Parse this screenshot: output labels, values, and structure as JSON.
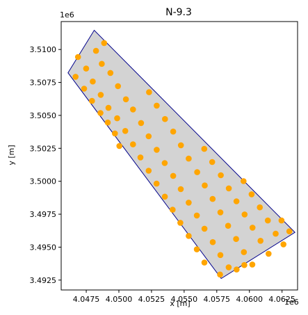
{
  "chart_data": {
    "type": "scatter",
    "title": "N-9.3",
    "xlabel": "x [m]",
    "ylabel": "y [m]",
    "x_offset_label": "1e6",
    "y_offset_label": "1e6",
    "xlim": [
      4.04558,
      4.06369
    ],
    "ylim": [
      3.49175,
      3.51212
    ],
    "x_tick_values": [
      4.0475,
      4.05,
      4.0525,
      4.055,
      4.0575,
      4.06,
      4.0625
    ],
    "x_tick_labels": [
      "4.0475",
      "4.0500",
      "4.0525",
      "4.0550",
      "4.0575",
      "4.0600",
      "4.0625"
    ],
    "y_tick_values": [
      3.4925,
      3.495,
      3.4975,
      3.5,
      3.5025,
      3.505,
      3.5075,
      3.51
    ],
    "y_tick_labels": [
      "3.4925",
      "3.4950",
      "3.4975",
      "3.5000",
      "3.5025",
      "3.5050",
      "3.5075",
      "3.5100"
    ],
    "grid": false,
    "legend": "none",
    "colors": {
      "polygon_fill": "#d3d3d3",
      "polygon_edge": "#00008b",
      "points": "#ffa500"
    },
    "polygon": [
      [
        4.0461,
        3.50823
      ],
      [
        4.04811,
        3.51146
      ],
      [
        4.06349,
        3.49612
      ],
      [
        4.05784,
        3.49262
      ],
      [
        4.0461,
        3.50823
      ]
    ],
    "points": [
      [
        4.04887,
        3.51049
      ],
      [
        4.04825,
        3.5099
      ],
      [
        4.04687,
        3.50943
      ],
      [
        4.04869,
        3.50891
      ],
      [
        4.04749,
        3.50855
      ],
      [
        4.04935,
        3.50822
      ],
      [
        4.04668,
        3.50793
      ],
      [
        4.048,
        3.50757
      ],
      [
        4.04993,
        3.50722
      ],
      [
        4.04734,
        3.50703
      ],
      [
        4.04861,
        3.50656
      ],
      [
        4.05054,
        3.50622
      ],
      [
        4.04794,
        3.5061
      ],
      [
        4.05231,
        3.50676
      ],
      [
        4.0492,
        3.50557
      ],
      [
        4.05108,
        3.50545
      ],
      [
        4.0529,
        3.50574
      ],
      [
        4.04859,
        3.50518
      ],
      [
        4.04987,
        3.50478
      ],
      [
        4.0517,
        3.50442
      ],
      [
        4.05353,
        3.50472
      ],
      [
        4.04915,
        3.50446
      ],
      [
        4.05049,
        3.50382
      ],
      [
        4.05228,
        3.50341
      ],
      [
        4.05416,
        3.50377
      ],
      [
        4.0497,
        3.50363
      ],
      [
        4.05108,
        3.5028
      ],
      [
        4.0529,
        3.50239
      ],
      [
        4.05475,
        3.50273
      ],
      [
        4.05004,
        3.50268
      ],
      [
        4.05165,
        3.50181
      ],
      [
        4.05351,
        3.50138
      ],
      [
        4.05535,
        3.50172
      ],
      [
        4.05654,
        3.50246
      ],
      [
        4.05228,
        3.5008
      ],
      [
        4.05416,
        3.50041
      ],
      [
        4.056,
        3.50069
      ],
      [
        4.05715,
        3.50146
      ],
      [
        4.05289,
        3.49982
      ],
      [
        4.05474,
        3.4994
      ],
      [
        4.05658,
        3.49968
      ],
      [
        4.05781,
        3.50046
      ],
      [
        4.05352,
        3.49883
      ],
      [
        4.05535,
        3.49838
      ],
      [
        4.05718,
        3.49866
      ],
      [
        4.05842,
        3.49946
      ],
      [
        4.05955,
        3.50001
      ],
      [
        4.05412,
        3.49784
      ],
      [
        4.05597,
        3.4974
      ],
      [
        4.05778,
        3.49764
      ],
      [
        4.05901,
        3.49848
      ],
      [
        4.06017,
        3.49901
      ],
      [
        4.05471,
        3.49685
      ],
      [
        4.05656,
        3.4964
      ],
      [
        4.05837,
        3.49662
      ],
      [
        4.05963,
        3.49748
      ],
      [
        4.0608,
        3.49802
      ],
      [
        4.05535,
        3.49585
      ],
      [
        4.05719,
        3.49538
      ],
      [
        4.05898,
        3.49562
      ],
      [
        4.06024,
        3.49648
      ],
      [
        4.06141,
        3.49702
      ],
      [
        4.06246,
        3.49702
      ],
      [
        4.05597,
        3.49483
      ],
      [
        4.05778,
        3.4944
      ],
      [
        4.05958,
        3.49462
      ],
      [
        4.06085,
        3.49548
      ],
      [
        4.06201,
        3.49602
      ],
      [
        4.06306,
        3.4962
      ],
      [
        4.05655,
        3.49383
      ],
      [
        4.05841,
        3.49347
      ],
      [
        4.06022,
        3.49368
      ],
      [
        4.06147,
        3.4945
      ],
      [
        4.05775,
        3.49292
      ],
      [
        4.05902,
        3.4933
      ],
      [
        4.05961,
        3.49364
      ],
      [
        4.06261,
        3.49521
      ]
    ]
  }
}
